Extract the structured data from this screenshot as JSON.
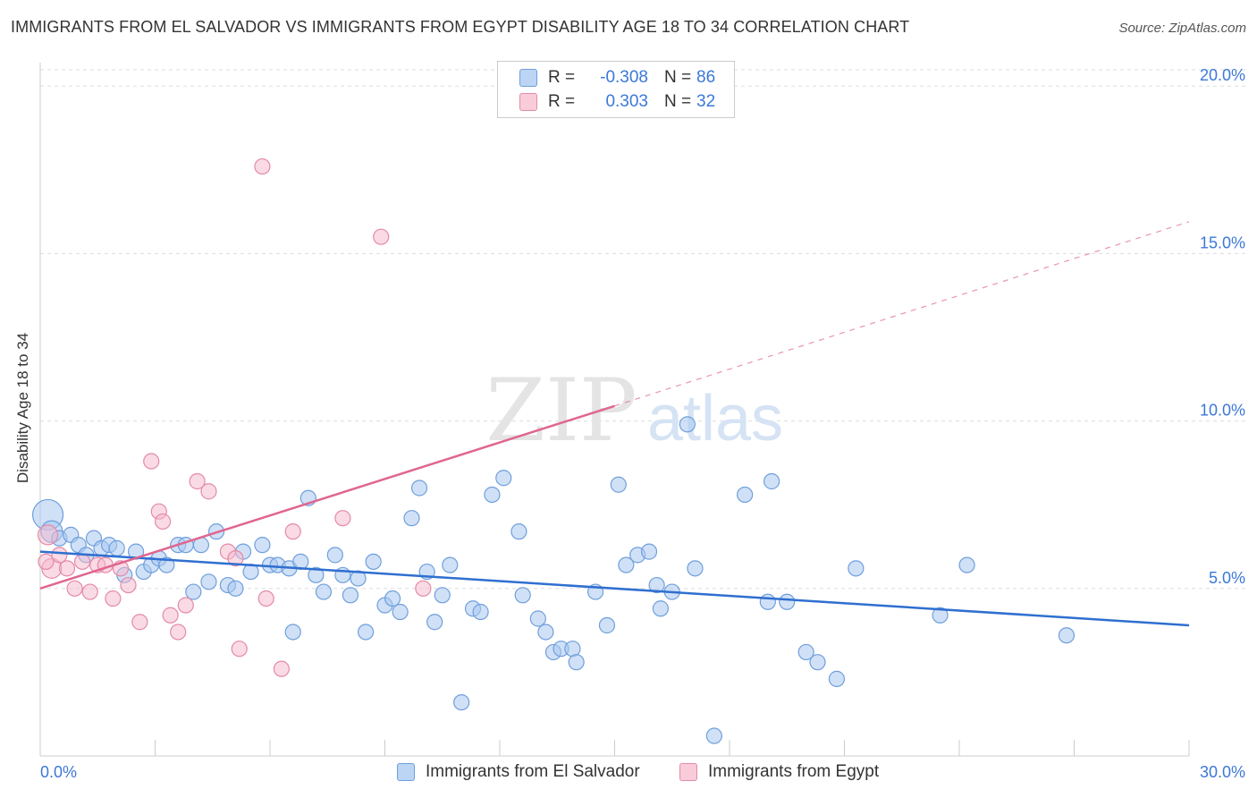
{
  "title": "IMMIGRANTS FROM EL SALVADOR VS IMMIGRANTS FROM EGYPT DISABILITY AGE 18 TO 34 CORRELATION CHART",
  "source": "Source: ZipAtlas.com",
  "watermark": {
    "zip": "ZIP",
    "atlas": "atlas"
  },
  "legend": {
    "rows": [
      {
        "r_label": "R =",
        "r_value": "-0.308",
        "n_label": "N =",
        "n_value": "86",
        "color": "#a9c8f0"
      },
      {
        "r_label": "R =",
        "r_value": "0.303",
        "n_label": "N =",
        "n_value": "32",
        "color": "#f5b8cb"
      }
    ]
  },
  "colors": {
    "blue_fill": "#a9c8f0",
    "blue_stroke": "#6f9fdc",
    "blue_line": "#2f6fd0",
    "pink_fill": "#f5b8cb",
    "pink_stroke": "#e48aa6",
    "pink_line": "#e0668f",
    "tick_text": "#3b78d8",
    "grid": "#dddddd"
  },
  "chart_data": {
    "type": "scatter",
    "title": "IMMIGRANTS FROM EL SALVADOR VS IMMIGRANTS FROM EGYPT DISABILITY AGE 18 TO 34 CORRELATION CHART",
    "xlabel": "",
    "ylabel": "Disability Age 18 to 34",
    "xlim": [
      0,
      30
    ],
    "ylim": [
      0,
      20.7
    ],
    "x_tick_labels": [
      "0.0%",
      "30.0%"
    ],
    "y_ticks": [
      5,
      10,
      15,
      20
    ],
    "y_tick_labels": [
      "5.0%",
      "10.0%",
      "15.0%",
      "20.0%"
    ],
    "series": [
      {
        "name": "Immigrants from El Salvador",
        "color": "#a9c8f0",
        "trend": {
          "x0": 0,
          "y0": 6.1,
          "x1": 30,
          "y1": 3.9
        },
        "points": [
          [
            0.2,
            7.2
          ],
          [
            0.3,
            6.7
          ],
          [
            0.5,
            6.5
          ],
          [
            0.8,
            6.6
          ],
          [
            1.0,
            6.3
          ],
          [
            1.2,
            6.0
          ],
          [
            1.4,
            6.5
          ],
          [
            1.6,
            6.2
          ],
          [
            1.8,
            6.3
          ],
          [
            2.0,
            6.2
          ],
          [
            2.2,
            5.4
          ],
          [
            2.5,
            6.1
          ],
          [
            2.7,
            5.5
          ],
          [
            2.9,
            5.7
          ],
          [
            3.1,
            5.9
          ],
          [
            3.3,
            5.7
          ],
          [
            3.6,
            6.3
          ],
          [
            3.8,
            6.3
          ],
          [
            4.0,
            4.9
          ],
          [
            4.2,
            6.3
          ],
          [
            4.4,
            5.2
          ],
          [
            4.6,
            6.7
          ],
          [
            4.9,
            5.1
          ],
          [
            5.1,
            5.0
          ],
          [
            5.3,
            6.1
          ],
          [
            5.5,
            5.5
          ],
          [
            5.8,
            6.3
          ],
          [
            6.0,
            5.7
          ],
          [
            6.2,
            5.7
          ],
          [
            6.5,
            5.6
          ],
          [
            6.6,
            3.7
          ],
          [
            6.8,
            5.8
          ],
          [
            7.0,
            7.7
          ],
          [
            7.2,
            5.4
          ],
          [
            7.4,
            4.9
          ],
          [
            7.7,
            6.0
          ],
          [
            7.9,
            5.4
          ],
          [
            8.1,
            4.8
          ],
          [
            8.3,
            5.3
          ],
          [
            8.5,
            3.7
          ],
          [
            8.7,
            5.8
          ],
          [
            9.0,
            4.5
          ],
          [
            9.2,
            4.7
          ],
          [
            9.4,
            4.3
          ],
          [
            9.7,
            7.1
          ],
          [
            9.9,
            8.0
          ],
          [
            10.1,
            5.5
          ],
          [
            10.3,
            4.0
          ],
          [
            10.5,
            4.8
          ],
          [
            10.7,
            5.7
          ],
          [
            11.0,
            1.6
          ],
          [
            11.3,
            4.4
          ],
          [
            11.5,
            4.3
          ],
          [
            11.8,
            7.8
          ],
          [
            12.1,
            8.3
          ],
          [
            12.5,
            6.7
          ],
          [
            12.6,
            4.8
          ],
          [
            13.0,
            4.1
          ],
          [
            13.2,
            3.7
          ],
          [
            13.4,
            3.1
          ],
          [
            13.6,
            3.2
          ],
          [
            13.9,
            3.2
          ],
          [
            14.0,
            2.8
          ],
          [
            14.5,
            4.9
          ],
          [
            14.8,
            3.9
          ],
          [
            15.1,
            8.1
          ],
          [
            15.3,
            5.7
          ],
          [
            15.6,
            6.0
          ],
          [
            15.9,
            6.1
          ],
          [
            16.1,
            5.1
          ],
          [
            16.2,
            4.4
          ],
          [
            16.5,
            4.9
          ],
          [
            16.9,
            9.9
          ],
          [
            17.1,
            5.6
          ],
          [
            17.6,
            0.6
          ],
          [
            18.4,
            7.8
          ],
          [
            19.0,
            4.6
          ],
          [
            19.1,
            8.2
          ],
          [
            19.5,
            4.6
          ],
          [
            20.0,
            3.1
          ],
          [
            20.3,
            2.8
          ],
          [
            20.8,
            2.3
          ],
          [
            21.3,
            5.6
          ],
          [
            23.5,
            4.2
          ],
          [
            24.2,
            5.7
          ],
          [
            26.8,
            3.6
          ]
        ]
      },
      {
        "name": "Immigrants from Egypt",
        "color": "#f5b8cb",
        "trend": {
          "x0": 0,
          "y0": 5.0,
          "x1": 15,
          "y1": 10.45,
          "dashed_x1": 30,
          "dashed_y1": 15.95
        },
        "points": [
          [
            0.2,
            6.6
          ],
          [
            0.3,
            5.6
          ],
          [
            0.5,
            6.0
          ],
          [
            0.7,
            5.6
          ],
          [
            0.9,
            5.0
          ],
          [
            1.1,
            5.8
          ],
          [
            1.3,
            4.9
          ],
          [
            1.5,
            5.7
          ],
          [
            1.7,
            5.7
          ],
          [
            1.9,
            4.7
          ],
          [
            2.1,
            5.6
          ],
          [
            2.3,
            5.1
          ],
          [
            2.6,
            4.0
          ],
          [
            2.9,
            8.8
          ],
          [
            3.1,
            7.3
          ],
          [
            3.2,
            7.0
          ],
          [
            3.4,
            4.2
          ],
          [
            3.6,
            3.7
          ],
          [
            3.8,
            4.5
          ],
          [
            4.1,
            8.2
          ],
          [
            4.4,
            7.9
          ],
          [
            4.9,
            6.1
          ],
          [
            5.1,
            5.9
          ],
          [
            5.2,
            3.2
          ],
          [
            5.8,
            17.6
          ],
          [
            5.9,
            4.7
          ],
          [
            6.3,
            2.6
          ],
          [
            6.6,
            6.7
          ],
          [
            7.9,
            7.1
          ],
          [
            8.9,
            15.5
          ],
          [
            10.0,
            5.0
          ],
          [
            0.15,
            5.8
          ]
        ]
      }
    ]
  },
  "bottom_legend": {
    "items": [
      {
        "label": "Immigrants from El Salvador",
        "color": "#a9c8f0"
      },
      {
        "label": "Immigrants from Egypt",
        "color": "#f5b8cb"
      }
    ]
  }
}
